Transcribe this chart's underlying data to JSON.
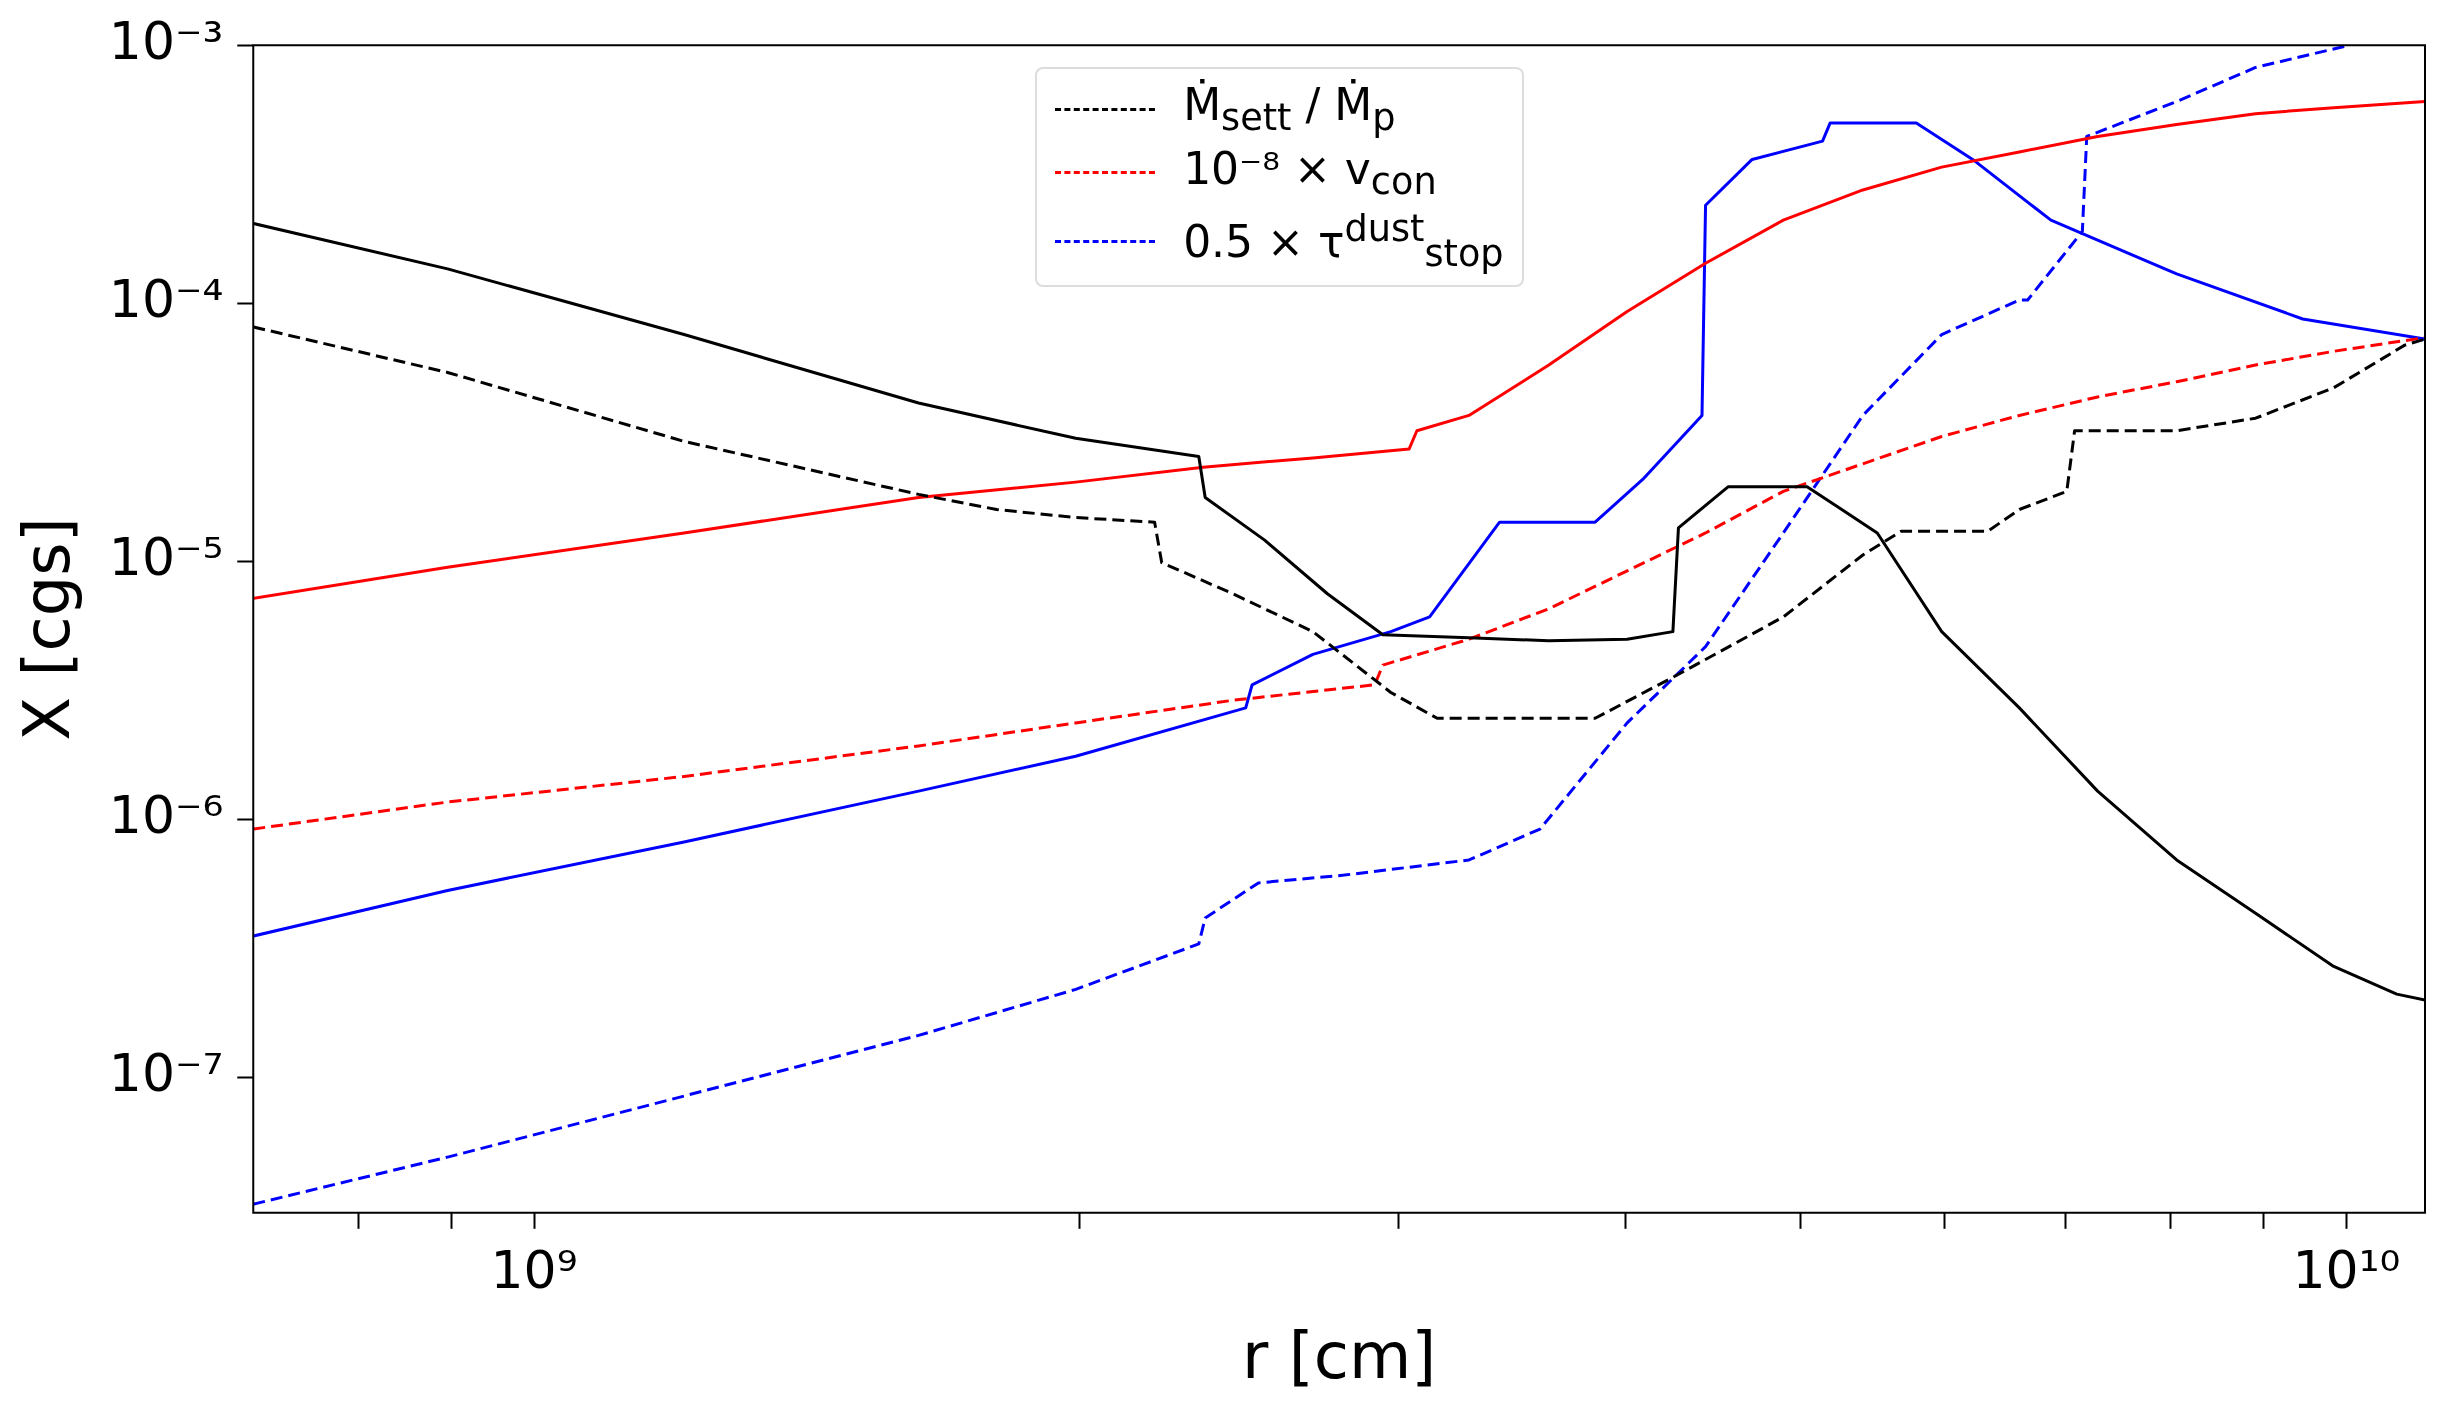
{
  "chart_data": {
    "type": "line",
    "xlabel": "r [cm]",
    "ylabel": "X [cgs]",
    "log": "xy",
    "legend": "top",
    "grid": false,
    "xlim": [
      700000000.0,
      11050000000.0
    ],
    "ylim": [
      3.1e-08,
      0.001
    ],
    "xticks": [
      {
        "value": 800000000.0,
        "label": null
      },
      {
        "value": 900000000.0,
        "label": null
      },
      {
        "value": 1000000000.0,
        "label": "10⁹"
      },
      {
        "value": 2000000000.0,
        "label": null
      },
      {
        "value": 3000000000.0,
        "label": null
      },
      {
        "value": 4000000000.0,
        "label": null
      },
      {
        "value": 5000000000.0,
        "label": null
      },
      {
        "value": 6000000000.0,
        "label": null
      },
      {
        "value": 7000000000.0,
        "label": null
      },
      {
        "value": 8000000000.0,
        "label": null
      },
      {
        "value": 9000000000.0,
        "label": null
      },
      {
        "value": 10000000000.0,
        "label": "10¹⁰"
      }
    ],
    "yticks": [
      {
        "value": 1e-07,
        "label": "10⁻⁷"
      },
      {
        "value": 1e-06,
        "label": "10⁻⁶"
      },
      {
        "value": 1e-05,
        "label": "10⁻⁵"
      },
      {
        "value": 0.0001,
        "label": "10⁻⁴"
      },
      {
        "value": 0.001,
        "label": "10⁻³"
      }
    ],
    "series": [
      {
        "color": "#000000",
        "line_style": "solid",
        "x": [
          700000000.0,
          896000000.0,
          1210000000.0,
          1630000000.0,
          1990000000.0,
          2327000000.0,
          2346000000.0,
          2530000000.0,
          2740000000.0,
          2940000000.0,
          3280000000.0,
          3630000000.0,
          4010000000.0,
          4250000000.0,
          4280000000.0,
          4560000000.0,
          5040000000.0,
          5510000000.0,
          5980000000.0,
          6600000000.0,
          7290000000.0,
          8060000000.0,
          8910000000.0,
          9840000000.0,
          10660000000.0,
          11050000000.0
        ],
        "values": [
          0.000204,
          0.000136,
          7.57e-05,
          4.11e-05,
          3e-05,
          2.55e-05,
          1.77e-05,
          1.21e-05,
          7.5e-06,
          5.2e-06,
          5.07e-06,
          4.93e-06,
          5e-06,
          5.35e-06,
          1.35e-05,
          1.95e-05,
          1.95e-05,
          1.29e-05,
          5.35e-06,
          2.71e-06,
          1.29e-06,
          6.98e-07,
          4.34e-07,
          2.7e-07,
          2.11e-07,
          2e-07
        ]
      },
      {
        "name": "Ṁ$_{sett}$ / Ṁ$_{p}$",
        "color": "#000000",
        "line_style": "dashed",
        "x": [
          700000000.0,
          896000000.0,
          1210000000.0,
          1630000000.0,
          1800000000.0,
          1990000000.0,
          2200000000.0,
          2220000000.0,
          2430000000.0,
          2690000000.0,
          2970000000.0,
          3150000000.0,
          3850000000.0,
          4250000000.0,
          4890000000.0,
          5410000000.0,
          5680000000.0,
          6340000000.0,
          6600000000.0,
          7010000000.0,
          7080000000.0,
          8060000000.0,
          8910000000.0,
          9840000000.0,
          10770000000.0,
          11050000000.0
        ],
        "values": [
          8.1e-05,
          5.4e-05,
          2.92e-05,
          1.82e-05,
          1.59e-05,
          1.48e-05,
          1.42e-05,
          9.9e-06,
          7.5e-06,
          5.35e-06,
          3.11e-06,
          2.47e-06,
          2.47e-06,
          3.56e-06,
          6.1e-06,
          1.06e-05,
          1.31e-05,
          1.31e-05,
          1.59e-05,
          1.87e-05,
          3.21e-05,
          3.21e-05,
          3.59e-05,
          4.71e-05,
          6.89e-05,
          7.27e-05
        ]
      },
      {
        "color": "#ff0000",
        "line_style": "solid",
        "x": [
          700000000.0,
          896000000.0,
          1210000000.0,
          1630000000.0,
          1990000000.0,
          2340000000.0,
          2690000000.0,
          3040000000.0,
          3070000000.0,
          3280000000.0,
          3630000000.0,
          4010000000.0,
          4430000000.0,
          4890000000.0,
          5410000000.0,
          5980000000.0,
          6600000000.0,
          7290000000.0,
          8060000000.0,
          8910000000.0,
          9840000000.0,
          11050000000.0
        ],
        "values": [
          7.2e-06,
          9.5e-06,
          1.29e-05,
          1.77e-05,
          2.03e-05,
          2.32e-05,
          2.52e-05,
          2.73e-05,
          3.21e-05,
          3.68e-05,
          5.77e-05,
          9.3e-05,
          0.000143,
          0.00021,
          0.000275,
          0.000337,
          0.000386,
          0.000443,
          0.000493,
          0.000543,
          0.000573,
          0.000605
        ]
      },
      {
        "name": "10⁻⁸ × v$_{con}$",
        "color": "#ff0000",
        "line_style": "dashed",
        "x": [
          700000000.0,
          896000000.0,
          1210000000.0,
          1630000000.0,
          1990000000.0,
          2430000000.0,
          2910000000.0,
          2940000000.0,
          3280000000.0,
          3630000000.0,
          4010000000.0,
          4430000000.0,
          4890000000.0,
          5410000000.0,
          5980000000.0,
          6600000000.0,
          7290000000.0,
          8060000000.0,
          8910000000.0,
          9840000000.0,
          11050000000.0
        ],
        "values": [
          9.2e-07,
          1.17e-06,
          1.47e-06,
          1.93e-06,
          2.37e-06,
          2.9e-06,
          3.33e-06,
          3.97e-06,
          5e-06,
          6.56e-06,
          9.2e-06,
          1.29e-05,
          1.87e-05,
          2.39e-05,
          3.05e-05,
          3.68e-05,
          4.34e-05,
          4.97e-05,
          5.77e-05,
          6.52e-05,
          7.37e-05
        ]
      },
      {
        "color": "#0000ff",
        "line_style": "solid",
        "x": [
          700000000.0,
          896000000.0,
          1210000000.0,
          1630000000.0,
          1990000000.0,
          2470000000.0,
          2490000000.0,
          2690000000.0,
          2970000000.0,
          3120000000.0,
          3410000000.0,
          3850000000.0,
          4090000000.0,
          4410000000.0,
          4430000000.0,
          4700000000.0,
          5140000000.0,
          5190000000.0,
          5790000000.0,
          6220000000.0,
          6870000000.0,
          8060000000.0,
          9460000000.0,
          11050000000.0
        ],
        "values": [
          3.54e-07,
          5.32e-07,
          8.2e-07,
          1.29e-06,
          1.76e-06,
          2.71e-06,
          3.33e-06,
          4.37e-06,
          5.35e-06,
          6.1e-06,
          1.42e-05,
          1.42e-05,
          2.08e-05,
          3.68e-05,
          0.00024,
          0.000361,
          0.000425,
          0.0005,
          0.0005,
          0.000361,
          0.00021,
          0.00013,
          8.7e-05,
          7.27e-05
        ]
      },
      {
        "name": "0.5 × τ$^{dust}$$_{stop}$",
        "color": "#0000ff",
        "line_style": "dashed",
        "x": [
          700000000.0,
          896000000.0,
          1210000000.0,
          1630000000.0,
          1990000000.0,
          2327000000.0,
          2346000000.0,
          2510000000.0,
          2800000000.0,
          3280000000.0,
          3590000000.0,
          4010000000.0,
          4430000000.0,
          4890000000.0,
          5410000000.0,
          5980000000.0,
          6600000000.0,
          6670000000.0,
          7150000000.0,
          7190000000.0,
          8060000000.0,
          8910000000.0,
          10040000000.0
        ],
        "values": [
          3.24e-08,
          4.93e-08,
          8.5e-08,
          1.46e-07,
          2.2e-07,
          3.3e-07,
          4.16e-07,
          5.69e-07,
          6.1e-07,
          6.98e-07,
          9.2e-07,
          2.37e-06,
          4.68e-06,
          1.29e-05,
          3.68e-05,
          7.57e-05,
          0.000103,
          0.000103,
          0.00019,
          0.000443,
          0.000605,
          0.00082,
          0.001
        ]
      }
    ]
  }
}
